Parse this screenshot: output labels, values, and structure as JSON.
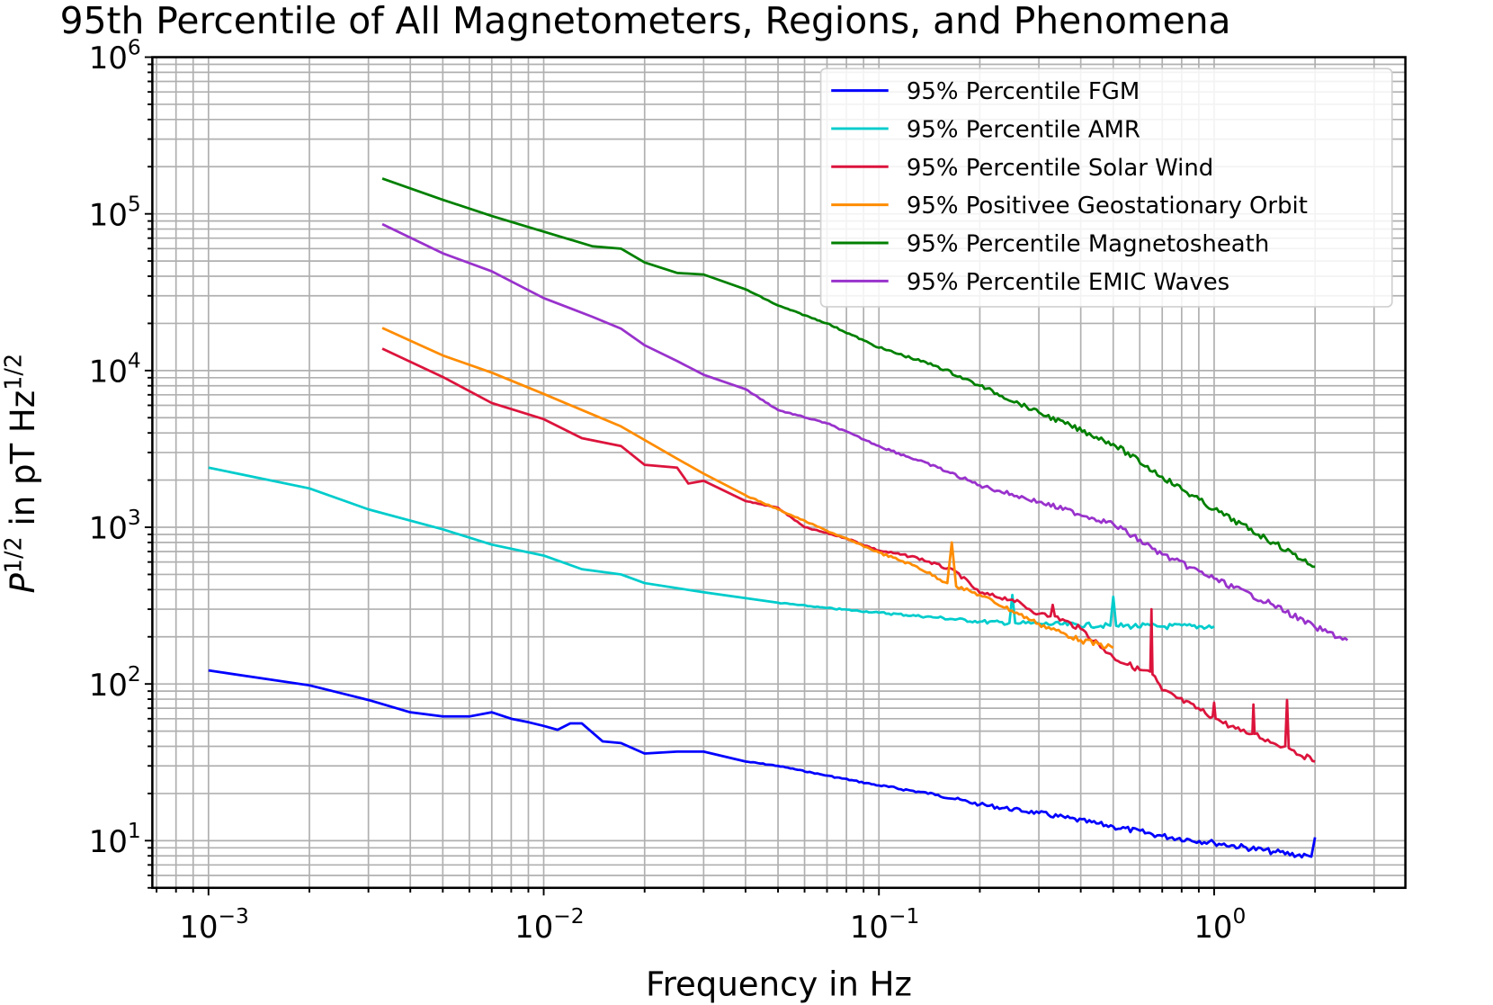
{
  "chart_data": {
    "type": "line",
    "title": "95th Percentile of All Magnetometers, Regions, and Phenomena",
    "xlabel": "Frequency in Hz",
    "ylabel": {
      "base": "P",
      "exp1": "1/2",
      "mid": " in pT Hz",
      "exp2": "1/2"
    },
    "xscale": "log",
    "yscale": "log",
    "xlim": [
      0.00068,
      3.72
    ],
    "ylim": [
      5.0,
      1000000
    ],
    "grid": "major and minor",
    "legend_position": "top-right",
    "xticks": [
      {
        "value": 0.001,
        "base": "10",
        "exp": "−3"
      },
      {
        "value": 0.01,
        "base": "10",
        "exp": "−2"
      },
      {
        "value": 0.1,
        "base": "10",
        "exp": "−1"
      },
      {
        "value": 1,
        "base": "10",
        "exp": "0"
      }
    ],
    "yticks": [
      {
        "value": 10,
        "base": "10",
        "exp": "1"
      },
      {
        "value": 100,
        "base": "10",
        "exp": "2"
      },
      {
        "value": 1000,
        "base": "10",
        "exp": "3"
      },
      {
        "value": 10000,
        "base": "10",
        "exp": "4"
      },
      {
        "value": 100000,
        "base": "10",
        "exp": "5"
      },
      {
        "value": 1000000,
        "base": "10",
        "exp": "6"
      }
    ],
    "series": [
      {
        "name": "95% Percentile FGM",
        "color": "#0000ff",
        "x": [
          0.001,
          0.002,
          0.003,
          0.004,
          0.005,
          0.006,
          0.007,
          0.008,
          0.009,
          0.01,
          0.011,
          0.012,
          0.013,
          0.015,
          0.017,
          0.02,
          0.025,
          0.03,
          0.04,
          0.05,
          0.07,
          0.1,
          0.15,
          0.2,
          0.3,
          0.5,
          0.7,
          1.0,
          1.5,
          1.95,
          2.0
        ],
        "y": [
          122,
          98,
          79,
          66,
          62,
          62,
          66,
          60,
          57,
          54,
          51,
          56,
          56,
          43,
          42,
          36,
          37,
          37,
          32,
          30,
          26,
          22.5,
          19.6,
          17,
          15,
          12.3,
          10.7,
          9.7,
          8.5,
          7.9,
          10.5
        ]
      },
      {
        "name": "95% Percentile AMR",
        "color": "#00cccc",
        "x": [
          0.001,
          0.002,
          0.003,
          0.005,
          0.007,
          0.01,
          0.013,
          0.017,
          0.02,
          0.03,
          0.05,
          0.07,
          0.1,
          0.15,
          0.2,
          0.245,
          0.25,
          0.255,
          0.3,
          0.49,
          0.5,
          0.51,
          0.7,
          1.0
        ],
        "y": [
          2400,
          1770,
          1300,
          970,
          775,
          660,
          540,
          500,
          440,
          385,
          330,
          305,
          285,
          265,
          250,
          245,
          370,
          245,
          242,
          235,
          360,
          235,
          233,
          233
        ]
      },
      {
        "name": "95% Percentile Solar Wind",
        "color": "#dc143c",
        "x": [
          0.0033,
          0.005,
          0.007,
          0.01,
          0.013,
          0.017,
          0.02,
          0.025,
          0.027,
          0.03,
          0.04,
          0.05,
          0.06,
          0.08,
          0.1,
          0.13,
          0.17,
          0.2,
          0.25,
          0.3,
          0.325,
          0.33,
          0.335,
          0.4,
          0.5,
          0.6,
          0.645,
          0.65,
          0.655,
          0.7,
          0.99,
          1.0,
          1.01,
          1.2,
          1.3,
          1.31,
          1.32,
          1.5,
          1.63,
          1.65,
          1.67,
          1.7,
          2.0
        ],
        "y": [
          13800,
          9100,
          6200,
          4900,
          3700,
          3300,
          2500,
          2400,
          1900,
          1980,
          1470,
          1330,
          1000,
          850,
          710,
          640,
          520,
          380,
          345,
          280,
          270,
          320,
          270,
          225,
          148,
          123,
          120,
          300,
          115,
          91,
          62,
          76,
          60,
          50,
          48,
          74,
          48,
          42,
          40,
          79,
          39,
          38,
          32
        ]
      },
      {
        "name": "95% Positivee Geostationary Orbit",
        "color": "#ff8c00",
        "x": [
          0.0033,
          0.005,
          0.007,
          0.01,
          0.013,
          0.017,
          0.025,
          0.03,
          0.04,
          0.05,
          0.07,
          0.1,
          0.13,
          0.16,
          0.165,
          0.17,
          0.2,
          0.3,
          0.4,
          0.5
        ],
        "y": [
          18700,
          12500,
          9700,
          7100,
          5600,
          4400,
          2740,
          2200,
          1600,
          1300,
          950,
          690,
          560,
          440,
          800,
          420,
          370,
          242,
          190,
          170
        ]
      },
      {
        "name": "95% Percentile Magnetosheath",
        "color": "#008000",
        "x": [
          0.0033,
          0.005,
          0.007,
          0.01,
          0.014,
          0.017,
          0.02,
          0.025,
          0.03,
          0.04,
          0.05,
          0.07,
          0.1,
          0.15,
          0.2,
          0.3,
          0.5,
          0.7,
          1.0,
          1.5,
          2.0
        ],
        "y": [
          168000,
          123000,
          97000,
          77000,
          62000,
          60000,
          49000,
          42000,
          41000,
          33000,
          26000,
          20000,
          14000,
          10600,
          8000,
          5400,
          3400,
          2100,
          1300,
          800,
          560
        ]
      },
      {
        "name": "95% Percentile EMIC Waves",
        "color": "#9932cc",
        "x": [
          0.0033,
          0.005,
          0.007,
          0.01,
          0.014,
          0.017,
          0.02,
          0.025,
          0.03,
          0.04,
          0.05,
          0.07,
          0.1,
          0.15,
          0.2,
          0.3,
          0.5,
          0.7,
          1.0,
          1.5,
          2.0,
          2.5
        ],
        "y": [
          86000,
          56000,
          43000,
          29000,
          22000,
          18500,
          14500,
          11500,
          9400,
          7600,
          5600,
          4600,
          3300,
          2400,
          1850,
          1450,
          1050,
          670,
          470,
          320,
          230,
          190
        ]
      }
    ]
  }
}
